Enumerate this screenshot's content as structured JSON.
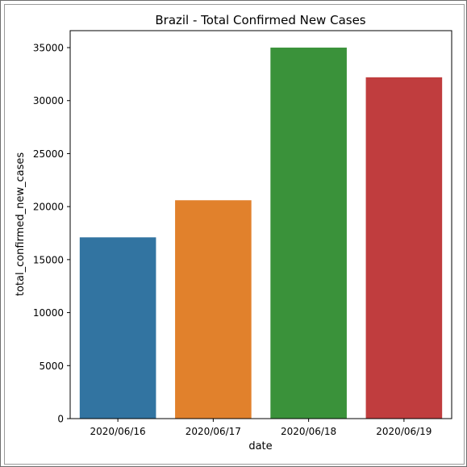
{
  "colors": {
    "background": "#ffffff",
    "axis": "#000000",
    "bars": [
      "#3274a1",
      "#e1812c",
      "#3a923a",
      "#c03d3e"
    ]
  },
  "chart_data": {
    "type": "bar",
    "title": "Brazil - Total Confirmed New Cases",
    "xlabel": "date",
    "ylabel": "total_confirmed_new_cases",
    "categories": [
      "2020/06/16",
      "2020/06/17",
      "2020/06/18",
      "2020/06/19"
    ],
    "values": [
      17100,
      20600,
      35000,
      32200
    ],
    "ylim": [
      0,
      36600
    ],
    "yticks": [
      0,
      5000,
      10000,
      15000,
      20000,
      25000,
      30000,
      35000
    ],
    "ytick_labels": [
      "0",
      "5000",
      "10000",
      "15000",
      "20000",
      "25000",
      "30000",
      "35000"
    ],
    "grid": false,
    "legend": "none"
  }
}
